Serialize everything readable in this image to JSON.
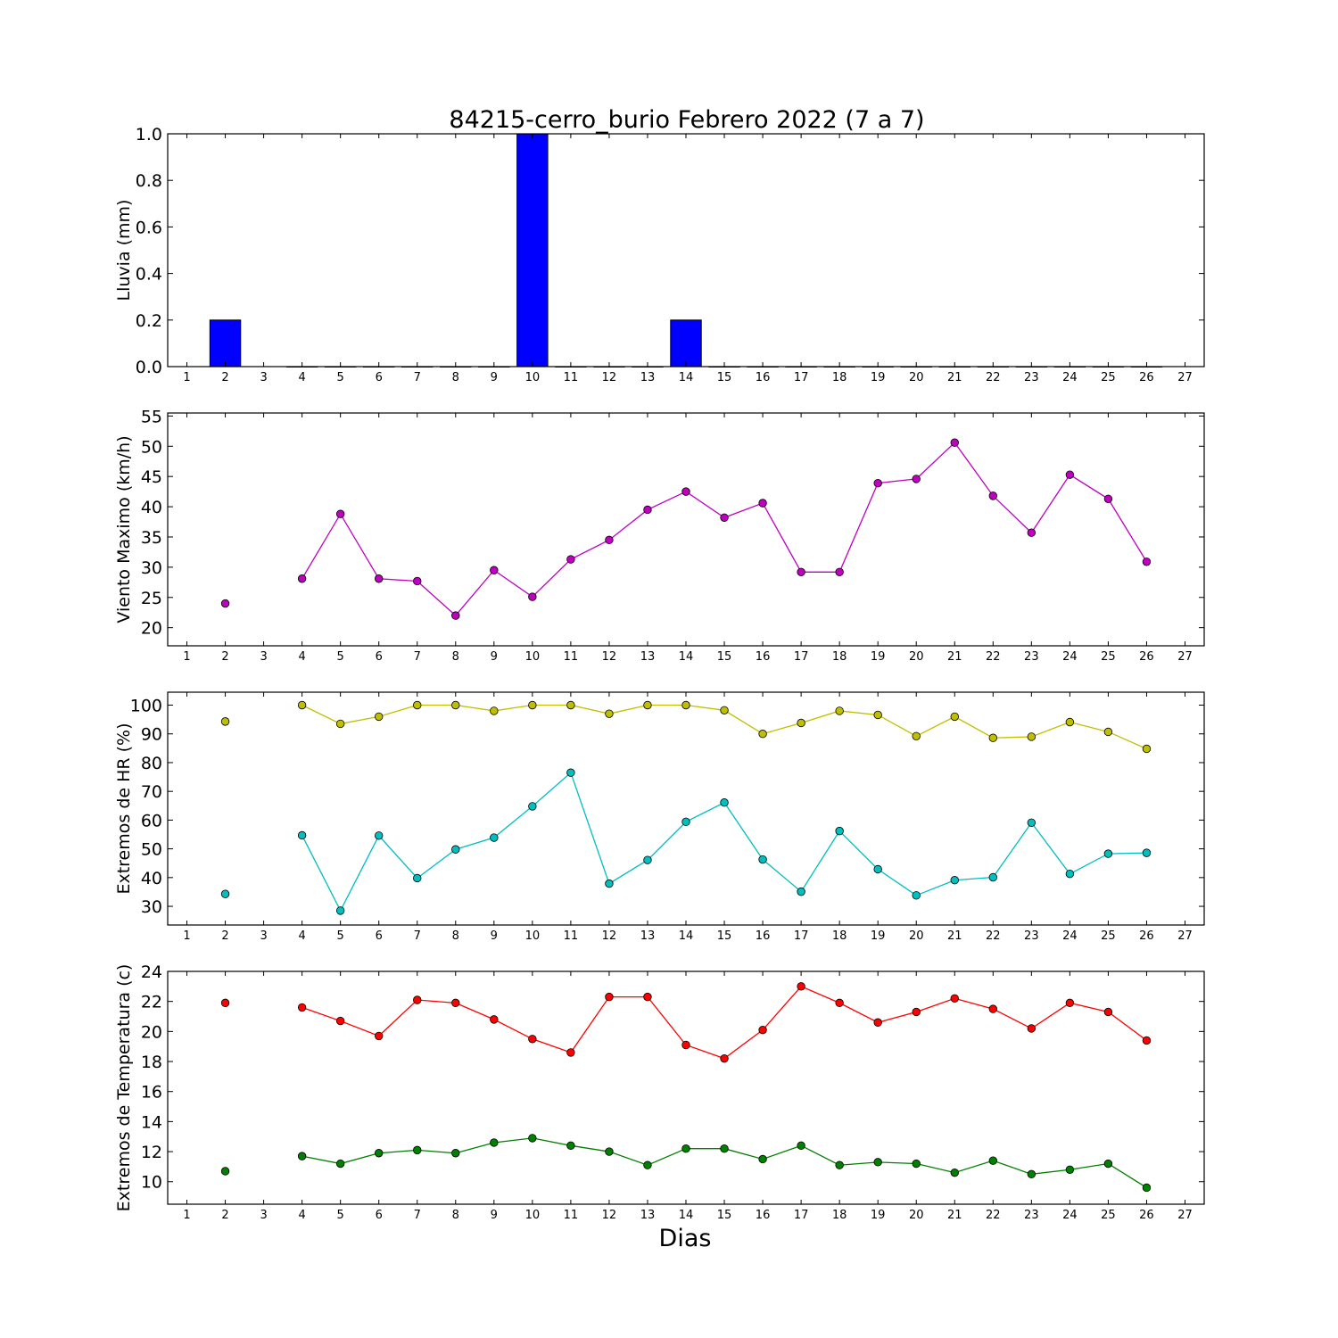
{
  "title": "84215-cerro_burio Febrero 2022  (7 a 7)",
  "xlabel": "Dias",
  "colors": {
    "rain": "#0000ff",
    "wind": "#bf00bf",
    "hr_max": "#bfbf00",
    "hr_min": "#00bfbf",
    "temp_max": "#ff0000",
    "temp_min": "#008000"
  },
  "chart_data": [
    {
      "type": "bar",
      "ylabel": "Lluvia (mm)",
      "xlim": [
        0.5,
        27.5
      ],
      "ylim": [
        0,
        1.0
      ],
      "xticks": [
        1,
        2,
        3,
        4,
        5,
        6,
        7,
        8,
        9,
        10,
        11,
        12,
        13,
        14,
        15,
        16,
        17,
        18,
        19,
        20,
        21,
        22,
        23,
        24,
        25,
        26,
        27
      ],
      "yticks": [
        "0.0",
        "0.2",
        "0.4",
        "0.6",
        "0.8",
        "1.0"
      ],
      "bar_width": 0.8,
      "series": [
        {
          "color": "#0000ff",
          "x": [
            1,
            2,
            3,
            4,
            5,
            6,
            7,
            8,
            9,
            10,
            11,
            12,
            13,
            14,
            15,
            16,
            17,
            18,
            19,
            20,
            21,
            22,
            23,
            24,
            25,
            26
          ],
          "values": [
            null,
            0.2,
            null,
            0,
            0,
            0,
            0,
            0,
            0,
            1.0,
            0,
            0,
            0,
            0.2,
            0,
            0,
            0,
            0,
            0,
            0,
            0,
            0,
            0,
            0,
            0,
            0
          ]
        }
      ]
    },
    {
      "type": "line",
      "ylabel": "Viento Maximo (km/h)",
      "xlim": [
        0.5,
        27.5
      ],
      "ylim": [
        17,
        55.5
      ],
      "xticks": [
        1,
        2,
        3,
        4,
        5,
        6,
        7,
        8,
        9,
        10,
        11,
        12,
        13,
        14,
        15,
        16,
        17,
        18,
        19,
        20,
        21,
        22,
        23,
        24,
        25,
        26,
        27
      ],
      "yticks": [
        "20",
        "25",
        "30",
        "35",
        "40",
        "45",
        "50",
        "55"
      ],
      "series": [
        {
          "color": "#bf00bf",
          "x": [
            2,
            3,
            4,
            5,
            6,
            7,
            8,
            9,
            10,
            11,
            12,
            13,
            14,
            15,
            16,
            17,
            18,
            19,
            20,
            21,
            22,
            23,
            24,
            25,
            26
          ],
          "values": [
            24.0,
            null,
            28.1,
            38.8,
            28.1,
            27.7,
            22.0,
            29.5,
            25.1,
            31.3,
            34.5,
            39.5,
            42.5,
            38.2,
            40.6,
            29.2,
            29.2,
            43.9,
            44.6,
            50.6,
            41.8,
            35.7,
            45.3,
            41.3,
            30.9
          ]
        }
      ]
    },
    {
      "type": "line",
      "ylabel": "Extremos de HR (%)",
      "xlim": [
        0.5,
        27.5
      ],
      "ylim": [
        23.5,
        104.5
      ],
      "xticks": [
        1,
        2,
        3,
        4,
        5,
        6,
        7,
        8,
        9,
        10,
        11,
        12,
        13,
        14,
        15,
        16,
        17,
        18,
        19,
        20,
        21,
        22,
        23,
        24,
        25,
        26,
        27
      ],
      "yticks": [
        "30",
        "40",
        "50",
        "60",
        "70",
        "80",
        "90",
        "100"
      ],
      "series": [
        {
          "color": "#bfbf00",
          "x": [
            2,
            3,
            4,
            5,
            6,
            7,
            8,
            9,
            10,
            11,
            12,
            13,
            14,
            15,
            16,
            17,
            18,
            19,
            20,
            21,
            22,
            23,
            24,
            25,
            26
          ],
          "values": [
            94.3,
            null,
            100,
            93.5,
            96,
            100,
            100,
            98,
            100,
            100,
            97,
            100,
            100,
            98.2,
            90,
            93.8,
            98,
            96.6,
            89.2,
            96,
            88.6,
            89,
            94.1,
            90.7,
            84.8
          ]
        },
        {
          "color": "#00bfbf",
          "x": [
            2,
            3,
            4,
            5,
            6,
            7,
            8,
            9,
            10,
            11,
            12,
            13,
            14,
            15,
            16,
            17,
            18,
            19,
            20,
            21,
            22,
            23,
            24,
            25,
            26
          ],
          "values": [
            34.3,
            null,
            54.7,
            28.5,
            54.6,
            39.8,
            49.8,
            53.9,
            64.8,
            76.5,
            37.9,
            46.1,
            59.4,
            66.1,
            46.3,
            35.1,
            56.2,
            42.9,
            33.8,
            39.1,
            40.1,
            59.1,
            41.3,
            48.3,
            48.6
          ]
        }
      ]
    },
    {
      "type": "line",
      "ylabel": "Extremos de Temperatura (c)",
      "xlim": [
        0.5,
        27.5
      ],
      "ylim": [
        8.5,
        24
      ],
      "xticks": [
        1,
        2,
        3,
        4,
        5,
        6,
        7,
        8,
        9,
        10,
        11,
        12,
        13,
        14,
        15,
        16,
        17,
        18,
        19,
        20,
        21,
        22,
        23,
        24,
        25,
        26,
        27
      ],
      "yticks": [
        "10",
        "12",
        "14",
        "16",
        "18",
        "20",
        "22",
        "24"
      ],
      "series": [
        {
          "color": "#ff0000",
          "x": [
            2,
            3,
            4,
            5,
            6,
            7,
            8,
            9,
            10,
            11,
            12,
            13,
            14,
            15,
            16,
            17,
            18,
            19,
            20,
            21,
            22,
            23,
            24,
            25,
            26
          ],
          "values": [
            21.9,
            null,
            21.6,
            20.7,
            19.7,
            22.1,
            21.9,
            20.8,
            19.5,
            18.6,
            22.3,
            22.3,
            19.1,
            18.2,
            20.1,
            23.0,
            21.9,
            20.6,
            21.3,
            22.2,
            21.5,
            20.2,
            21.9,
            21.3,
            19.4
          ]
        },
        {
          "color": "#008000",
          "x": [
            2,
            3,
            4,
            5,
            6,
            7,
            8,
            9,
            10,
            11,
            12,
            13,
            14,
            15,
            16,
            17,
            18,
            19,
            20,
            21,
            22,
            23,
            24,
            25,
            26
          ],
          "values": [
            10.7,
            null,
            11.7,
            11.2,
            11.9,
            12.1,
            11.9,
            12.6,
            12.9,
            12.4,
            12.0,
            11.1,
            12.2,
            12.2,
            11.5,
            12.4,
            11.1,
            11.3,
            11.2,
            10.6,
            11.4,
            10.5,
            10.8,
            11.2,
            9.6
          ]
        }
      ]
    }
  ]
}
